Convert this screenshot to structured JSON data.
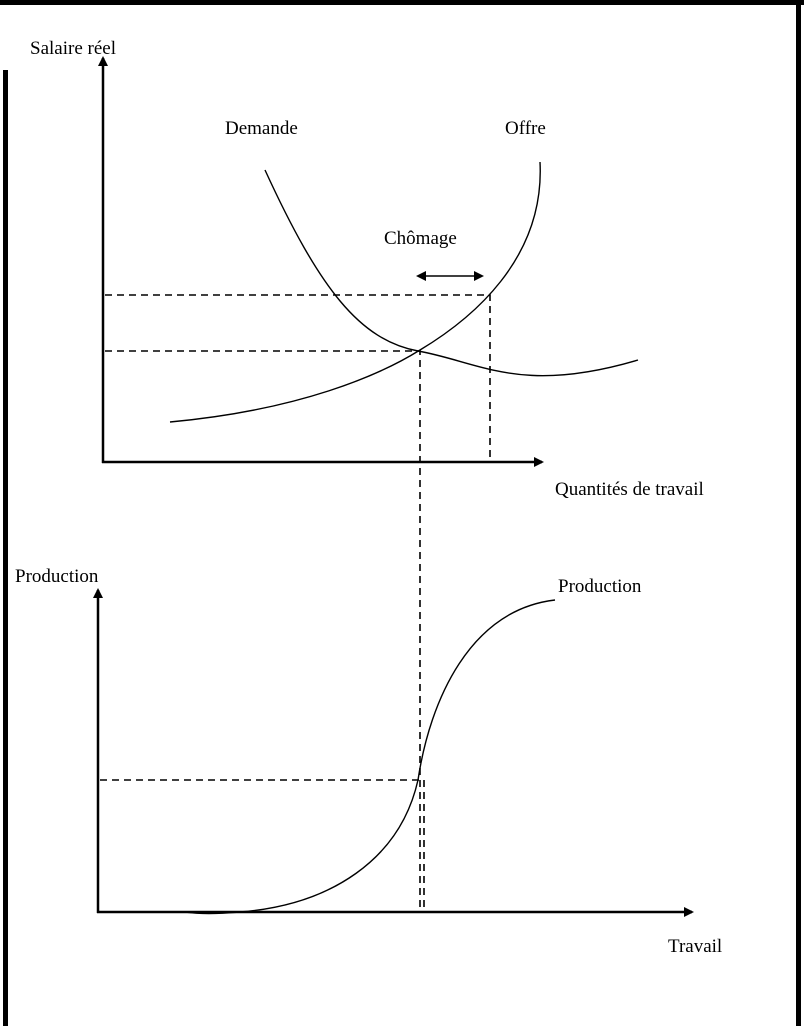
{
  "upper": {
    "y_axis_label": "Salaire réel",
    "x_axis_label": "Quantités de travail",
    "demand_label": "Demande",
    "supply_label": "Offre",
    "gap_label": "Chômage"
  },
  "lower": {
    "y_axis_label": "Production",
    "x_axis_label": "Travail",
    "curve_label": "Production"
  }
}
